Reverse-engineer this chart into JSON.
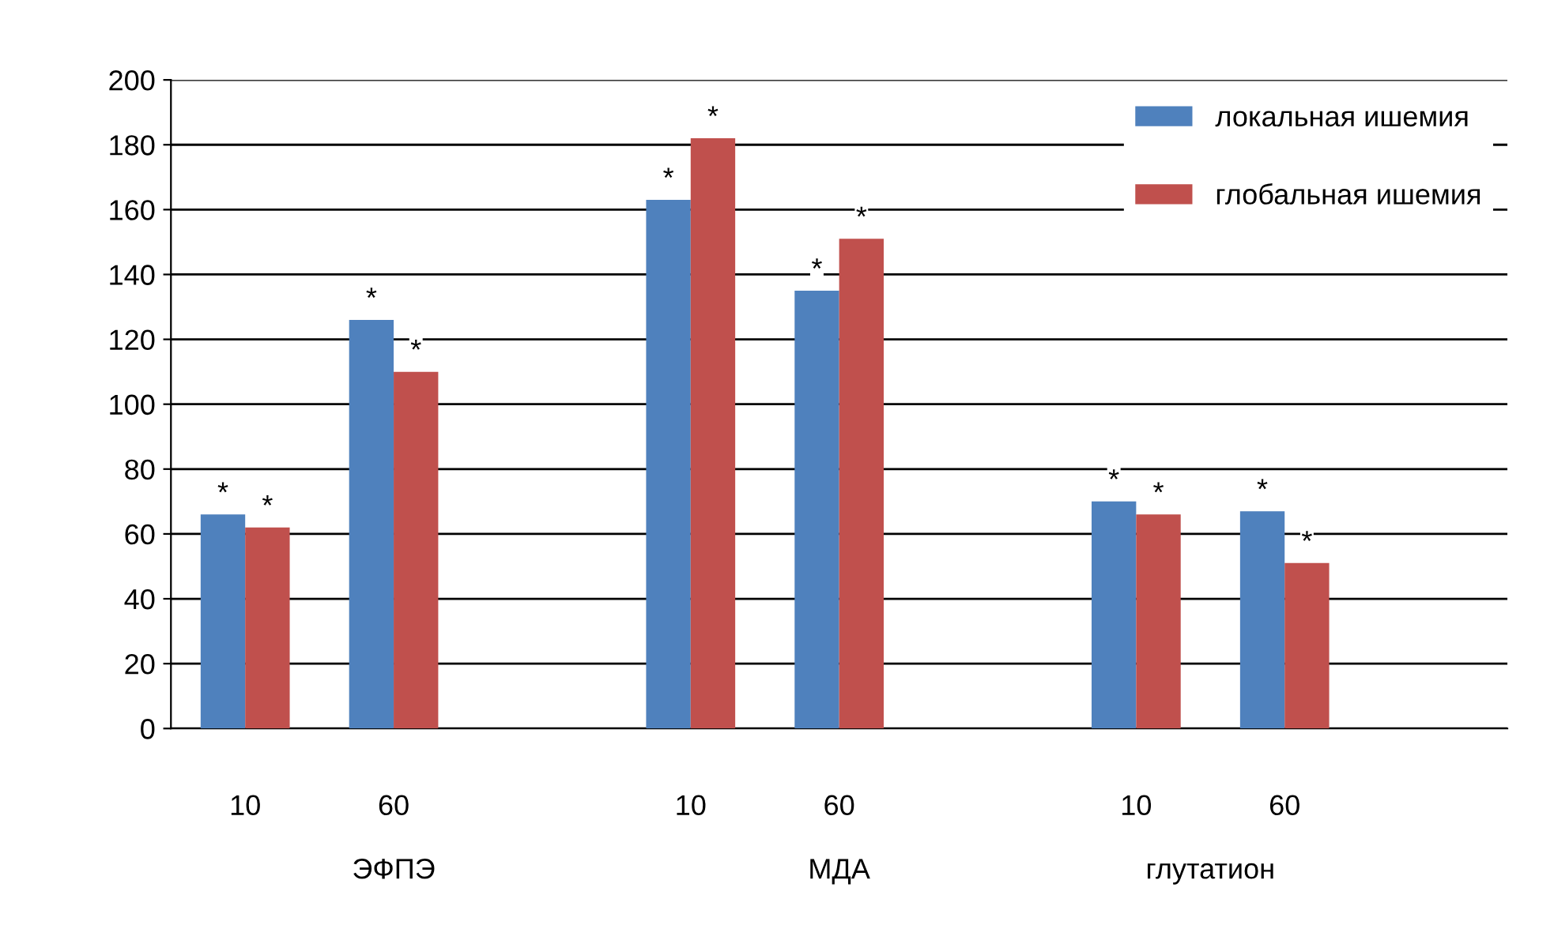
{
  "chart_data": {
    "type": "bar",
    "categories": [
      "10",
      "60",
      null,
      "10",
      "60",
      null,
      "10",
      "60"
    ],
    "series": [
      {
        "name": "локальная ишемия",
        "color": "#4f81bd",
        "values": [
          66,
          126,
          null,
          163,
          135,
          null,
          70,
          67
        ],
        "value_labels": [
          "*",
          "*",
          null,
          "*",
          "*",
          null,
          "*",
          "*"
        ]
      },
      {
        "name": "глобальная ишемия",
        "color": "#c0504d",
        "values": [
          62,
          110,
          null,
          182,
          151,
          null,
          66,
          51
        ],
        "value_labels": [
          "*",
          "*",
          null,
          "*",
          "*",
          null,
          "*",
          "*"
        ]
      }
    ],
    "annotations": [
      "ЭФПЭ",
      "МДА",
      "глутатион"
    ],
    "ylim": [
      0,
      200
    ],
    "yticks": [
      0,
      20,
      40,
      60,
      80,
      100,
      120,
      140,
      160,
      180,
      200
    ],
    "grid": "y",
    "legend": "top right"
  }
}
